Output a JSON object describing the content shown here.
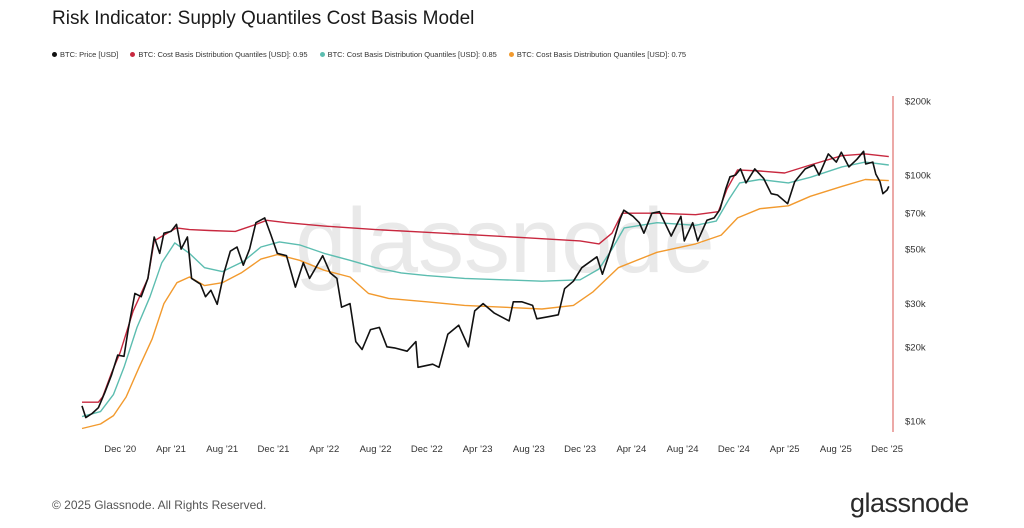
{
  "title": "Risk Indicator: Supply Quantiles Cost Basis Model",
  "footer": "© 2025 Glassnode. All Rights Reserved.",
  "brand": "glassnode",
  "watermark": "glassnode",
  "colors": {
    "price": "#111111",
    "q95": "#c8283f",
    "q85": "#5cbdb0",
    "q75": "#f29a2e",
    "axis": "#d9534f",
    "tick_text": "#333333",
    "watermark": "#e9e9e9"
  },
  "chart_data": {
    "type": "line",
    "y_scale": "log",
    "ylim": [
      9000,
      210000
    ],
    "xlim": [
      "2020-09-01",
      "2025-12-15"
    ],
    "y_ticks": [
      {
        "value": 200000,
        "label": "$200k"
      },
      {
        "value": 100000,
        "label": "$100k"
      },
      {
        "value": 70000,
        "label": "$70k"
      },
      {
        "value": 50000,
        "label": "$50k"
      },
      {
        "value": 30000,
        "label": "$30k"
      },
      {
        "value": 20000,
        "label": "$20k"
      },
      {
        "value": 10000,
        "label": "$10k"
      }
    ],
    "x_ticks": [
      {
        "date": "2020-12-01",
        "label": "Dec '20"
      },
      {
        "date": "2021-04-01",
        "label": "Apr '21"
      },
      {
        "date": "2021-08-01",
        "label": "Aug '21"
      },
      {
        "date": "2021-12-01",
        "label": "Dec '21"
      },
      {
        "date": "2022-04-01",
        "label": "Apr '22"
      },
      {
        "date": "2022-08-01",
        "label": "Aug '22"
      },
      {
        "date": "2022-12-01",
        "label": "Dec '22"
      },
      {
        "date": "2023-04-01",
        "label": "Apr '23"
      },
      {
        "date": "2023-08-01",
        "label": "Aug '23"
      },
      {
        "date": "2023-12-01",
        "label": "Dec '23"
      },
      {
        "date": "2024-04-01",
        "label": "Apr '24"
      },
      {
        "date": "2024-08-01",
        "label": "Aug '24"
      },
      {
        "date": "2024-12-01",
        "label": "Dec '24"
      },
      {
        "date": "2025-04-01",
        "label": "Apr '25"
      },
      {
        "date": "2025-08-01",
        "label": "Aug '25"
      },
      {
        "date": "2025-12-01",
        "label": "Dec '25"
      }
    ],
    "series": [
      {
        "name": "BTC: Price [USD]",
        "key": "price",
        "points": [
          [
            "2020-09-01",
            11500
          ],
          [
            "2020-09-10",
            10300
          ],
          [
            "2020-09-25",
            10700
          ],
          [
            "2020-10-10",
            11300
          ],
          [
            "2020-10-25",
            13000
          ],
          [
            "2020-11-10",
            15300
          ],
          [
            "2020-11-25",
            18500
          ],
          [
            "2020-12-10",
            18300
          ],
          [
            "2020-12-20",
            23500
          ],
          [
            "2021-01-05",
            33000
          ],
          [
            "2021-01-20",
            32000
          ],
          [
            "2021-02-05",
            38000
          ],
          [
            "2021-02-20",
            56000
          ],
          [
            "2021-03-05",
            48000
          ],
          [
            "2021-03-15",
            58000
          ],
          [
            "2021-04-01",
            59000
          ],
          [
            "2021-04-14",
            63000
          ],
          [
            "2021-04-25",
            50000
          ],
          [
            "2021-05-10",
            56000
          ],
          [
            "2021-05-20",
            38000
          ],
          [
            "2021-06-10",
            36000
          ],
          [
            "2021-06-22",
            32000
          ],
          [
            "2021-07-05",
            34000
          ],
          [
            "2021-07-20",
            29800
          ],
          [
            "2021-08-05",
            40000
          ],
          [
            "2021-08-20",
            49000
          ],
          [
            "2021-09-05",
            51000
          ],
          [
            "2021-09-20",
            43000
          ],
          [
            "2021-10-05",
            50000
          ],
          [
            "2021-10-20",
            64000
          ],
          [
            "2021-11-10",
            67000
          ],
          [
            "2021-11-25",
            57000
          ],
          [
            "2021-12-10",
            48000
          ],
          [
            "2022-01-01",
            47000
          ],
          [
            "2022-01-22",
            35000
          ],
          [
            "2022-02-10",
            44000
          ],
          [
            "2022-02-25",
            38000
          ],
          [
            "2022-03-28",
            47000
          ],
          [
            "2022-04-15",
            40000
          ],
          [
            "2022-05-01",
            38000
          ],
          [
            "2022-05-12",
            29000
          ],
          [
            "2022-06-01",
            30000
          ],
          [
            "2022-06-15",
            21000
          ],
          [
            "2022-06-30",
            19500
          ],
          [
            "2022-07-20",
            23500
          ],
          [
            "2022-08-10",
            24000
          ],
          [
            "2022-08-28",
            20000
          ],
          [
            "2022-09-15",
            19800
          ],
          [
            "2022-10-15",
            19200
          ],
          [
            "2022-11-05",
            21000
          ],
          [
            "2022-11-10",
            16500
          ],
          [
            "2022-12-15",
            17000
          ],
          [
            "2022-12-30",
            16500
          ],
          [
            "2023-01-20",
            22500
          ],
          [
            "2023-02-15",
            24500
          ],
          [
            "2023-03-10",
            20000
          ],
          [
            "2023-03-25",
            28000
          ],
          [
            "2023-04-14",
            30000
          ],
          [
            "2023-05-10",
            27500
          ],
          [
            "2023-06-15",
            25500
          ],
          [
            "2023-06-25",
            30500
          ],
          [
            "2023-07-15",
            30500
          ],
          [
            "2023-08-10",
            29500
          ],
          [
            "2023-08-20",
            26000
          ],
          [
            "2023-09-15",
            26500
          ],
          [
            "2023-10-10",
            27000
          ],
          [
            "2023-10-25",
            34500
          ],
          [
            "2023-11-15",
            37000
          ],
          [
            "2023-12-05",
            42000
          ],
          [
            "2024-01-10",
            46500
          ],
          [
            "2024-01-23",
            39500
          ],
          [
            "2024-02-15",
            51500
          ],
          [
            "2024-03-05",
            66000
          ],
          [
            "2024-03-14",
            72000
          ],
          [
            "2024-04-05",
            68000
          ],
          [
            "2024-04-20",
            64000
          ],
          [
            "2024-05-01",
            58000
          ],
          [
            "2024-05-20",
            70000
          ],
          [
            "2024-06-07",
            71000
          ],
          [
            "2024-07-05",
            56500
          ],
          [
            "2024-07-28",
            68000
          ],
          [
            "2024-08-05",
            54000
          ],
          [
            "2024-08-25",
            64000
          ],
          [
            "2024-09-06",
            54000
          ],
          [
            "2024-09-28",
            65500
          ],
          [
            "2024-10-15",
            67000
          ],
          [
            "2024-10-29",
            72500
          ],
          [
            "2024-11-12",
            88000
          ],
          [
            "2024-11-22",
            98500
          ],
          [
            "2024-12-05",
            100000
          ],
          [
            "2024-12-17",
            106000
          ],
          [
            "2024-12-30",
            93000
          ],
          [
            "2025-01-20",
            106000
          ],
          [
            "2025-02-10",
            97000
          ],
          [
            "2025-02-28",
            84000
          ],
          [
            "2025-03-15",
            83000
          ],
          [
            "2025-04-08",
            76500
          ],
          [
            "2025-04-25",
            94000
          ],
          [
            "2025-05-20",
            106000
          ],
          [
            "2025-06-10",
            110000
          ],
          [
            "2025-06-22",
            100000
          ],
          [
            "2025-07-14",
            122000
          ],
          [
            "2025-08-02",
            113000
          ],
          [
            "2025-08-14",
            124000
          ],
          [
            "2025-09-01",
            108000
          ],
          [
            "2025-09-20",
            116000
          ],
          [
            "2025-10-06",
            125000
          ],
          [
            "2025-10-11",
            111000
          ],
          [
            "2025-10-28",
            113000
          ],
          [
            "2025-11-04",
            101000
          ],
          [
            "2025-11-14",
            94000
          ],
          [
            "2025-11-21",
            84000
          ],
          [
            "2025-12-01",
            87000
          ],
          [
            "2025-12-05",
            90000
          ]
        ]
      },
      {
        "name": "BTC: Cost Basis Distribution Quantiles [USD]: 0.95",
        "key": "q95",
        "points": [
          [
            "2020-09-01",
            11900
          ],
          [
            "2020-10-10",
            11900
          ],
          [
            "2020-10-20",
            12500
          ],
          [
            "2020-11-10",
            15600
          ],
          [
            "2020-12-01",
            19000
          ],
          [
            "2021-01-01",
            28000
          ],
          [
            "2021-02-05",
            38000
          ],
          [
            "2021-02-20",
            54000
          ],
          [
            "2021-03-15",
            57000
          ],
          [
            "2021-04-14",
            61000
          ],
          [
            "2021-05-15",
            60000
          ],
          [
            "2021-07-01",
            59500
          ],
          [
            "2021-09-01",
            59000
          ],
          [
            "2021-10-20",
            63000
          ],
          [
            "2021-11-15",
            65500
          ],
          [
            "2022-01-01",
            64000
          ],
          [
            "2022-04-01",
            62000
          ],
          [
            "2022-08-01",
            60000
          ],
          [
            "2022-12-01",
            58500
          ],
          [
            "2023-04-01",
            57000
          ],
          [
            "2023-08-01",
            55500
          ],
          [
            "2023-12-01",
            54000
          ],
          [
            "2024-01-15",
            52500
          ],
          [
            "2024-02-15",
            58000
          ],
          [
            "2024-03-10",
            70000
          ],
          [
            "2024-06-01",
            70000
          ],
          [
            "2024-09-01",
            69000
          ],
          [
            "2024-10-25",
            71000
          ],
          [
            "2024-11-15",
            88000
          ],
          [
            "2024-12-10",
            105000
          ],
          [
            "2025-02-01",
            104000
          ],
          [
            "2025-04-01",
            102000
          ],
          [
            "2025-06-01",
            110000
          ],
          [
            "2025-08-15",
            120000
          ],
          [
            "2025-10-10",
            122000
          ],
          [
            "2025-12-05",
            119000
          ]
        ]
      },
      {
        "name": "BTC: Cost Basis Distribution Quantiles [USD]: 0.85",
        "key": "q85",
        "points": [
          [
            "2020-09-01",
            10400
          ],
          [
            "2020-10-15",
            10900
          ],
          [
            "2020-11-15",
            12800
          ],
          [
            "2020-12-10",
            16500
          ],
          [
            "2021-01-10",
            24000
          ],
          [
            "2021-02-10",
            32000
          ],
          [
            "2021-03-10",
            44000
          ],
          [
            "2021-04-10",
            53000
          ],
          [
            "2021-05-15",
            48000
          ],
          [
            "2021-06-20",
            42000
          ],
          [
            "2021-08-01",
            40500
          ],
          [
            "2021-09-20",
            44500
          ],
          [
            "2021-11-01",
            51000
          ],
          [
            "2021-12-15",
            53500
          ],
          [
            "2022-02-01",
            52000
          ],
          [
            "2022-04-01",
            48000
          ],
          [
            "2022-06-01",
            45000
          ],
          [
            "2022-08-01",
            42000
          ],
          [
            "2022-10-01",
            40000
          ],
          [
            "2022-12-01",
            39000
          ],
          [
            "2023-03-01",
            38000
          ],
          [
            "2023-06-01",
            37500
          ],
          [
            "2023-09-01",
            37000
          ],
          [
            "2023-12-01",
            37500
          ],
          [
            "2024-01-15",
            41500
          ],
          [
            "2024-02-15",
            50000
          ],
          [
            "2024-03-15",
            61000
          ],
          [
            "2024-06-01",
            64000
          ],
          [
            "2024-09-01",
            62500
          ],
          [
            "2024-10-20",
            65000
          ],
          [
            "2024-11-20",
            80000
          ],
          [
            "2024-12-15",
            93000
          ],
          [
            "2025-02-01",
            96000
          ],
          [
            "2025-04-10",
            93000
          ],
          [
            "2025-06-01",
            98000
          ],
          [
            "2025-08-15",
            108000
          ],
          [
            "2025-10-10",
            113000
          ],
          [
            "2025-12-05",
            110000
          ]
        ]
      },
      {
        "name": "BTC: Cost Basis Distribution Quantiles [USD]: 0.75",
        "key": "q75",
        "points": [
          [
            "2020-09-01",
            9300
          ],
          [
            "2020-10-15",
            9700
          ],
          [
            "2020-11-15",
            10500
          ],
          [
            "2020-12-15",
            12500
          ],
          [
            "2021-01-15",
            16500
          ],
          [
            "2021-02-15",
            21500
          ],
          [
            "2021-03-15",
            30000
          ],
          [
            "2021-04-15",
            36500
          ],
          [
            "2021-05-15",
            38500
          ],
          [
            "2021-06-20",
            35500
          ],
          [
            "2021-08-01",
            36500
          ],
          [
            "2021-09-15",
            40000
          ],
          [
            "2021-11-01",
            45500
          ],
          [
            "2021-12-10",
            47500
          ],
          [
            "2022-02-01",
            45000
          ],
          [
            "2022-04-01",
            41000
          ],
          [
            "2022-06-01",
            38500
          ],
          [
            "2022-07-15",
            33000
          ],
          [
            "2022-09-01",
            31500
          ],
          [
            "2022-12-01",
            30500
          ],
          [
            "2023-03-01",
            29500
          ],
          [
            "2023-06-01",
            29000
          ],
          [
            "2023-09-01",
            28500
          ],
          [
            "2023-11-15",
            29500
          ],
          [
            "2024-01-01",
            33500
          ],
          [
            "2024-03-01",
            42000
          ],
          [
            "2024-06-01",
            48500
          ],
          [
            "2024-09-01",
            52500
          ],
          [
            "2024-11-01",
            57000
          ],
          [
            "2024-12-10",
            67000
          ],
          [
            "2025-02-01",
            73000
          ],
          [
            "2025-04-10",
            75000
          ],
          [
            "2025-06-01",
            82000
          ],
          [
            "2025-08-15",
            90000
          ],
          [
            "2025-10-10",
            96000
          ],
          [
            "2025-12-05",
            95000
          ]
        ]
      }
    ]
  }
}
